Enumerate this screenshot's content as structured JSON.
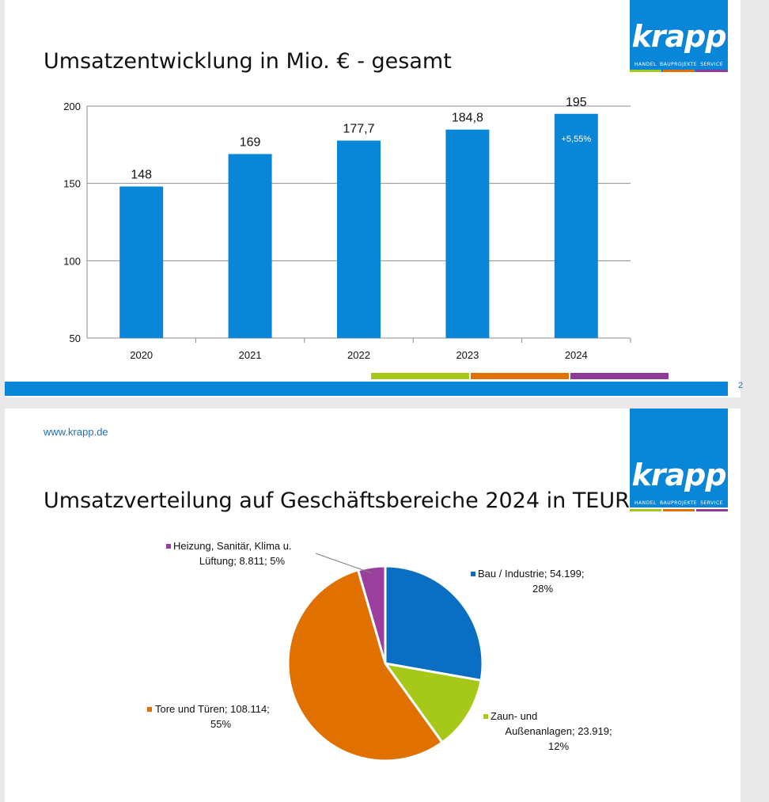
{
  "colors": {
    "brand_blue": "#0a86d8",
    "green": "#a6c919",
    "orange": "#e07000",
    "purple": "#8f3a98"
  },
  "slide1": {
    "title": "Umsatzentwicklung in Mio. € - gesamt",
    "page_number": "2"
  },
  "slide2": {
    "url": "www.krapp.de",
    "title": "Umsatzverteilung auf Geschäftsbereiche 2024 in TEUR"
  },
  "logo": {
    "word": "krapp",
    "tags": [
      "HANDEL",
      "BAUPROJEKTE",
      "SERVICE"
    ]
  },
  "chart_data": [
    {
      "type": "bar",
      "categories": [
        "2020",
        "2021",
        "2022",
        "2023",
        "2024"
      ],
      "values": [
        148,
        169,
        177.7,
        184.8,
        195
      ],
      "data_labels": [
        "148",
        "169",
        "177,7",
        "184,8",
        "195"
      ],
      "annotation": {
        "category": "2024",
        "text": "+5,55%"
      },
      "yticks": [
        "50",
        "100",
        "150",
        "200"
      ],
      "ylim": [
        50,
        200
      ],
      "grid": true,
      "color": "#0a86d8"
    },
    {
      "type": "pie",
      "slices": [
        {
          "label": "Bau / Industrie; 54.199; 28%",
          "value": 54199,
          "color": "#0a6fc2"
        },
        {
          "label": "Zaun- und Außenanlagen; 23.919; 12%",
          "value": 23919,
          "color": "#a6c919"
        },
        {
          "label": "Tore und Türen; 108.114; 55%",
          "value": 108114,
          "color": "#e07000"
        },
        {
          "label": "Heizung, Sanitär, Klima u. Lüftung; 8.811; 5%",
          "value": 8811,
          "color": "#9b3f9e"
        }
      ],
      "label_lines": [
        [
          "Bau / Industrie; 54.199;",
          "28%"
        ],
        [
          "Zaun- und",
          "Außenanlagen; 23.919;",
          "12%"
        ],
        [
          "Tore und Türen; 108.114;",
          "55%"
        ],
        [
          "Heizung, Sanitär, Klima u.",
          "Lüftung; 8.811; 5%"
        ]
      ]
    }
  ]
}
